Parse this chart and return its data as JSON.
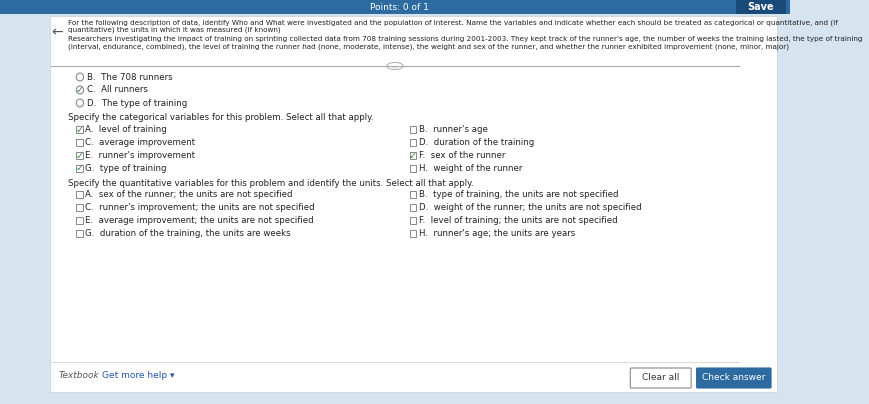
{
  "bg_color": "#d6e4f0",
  "panel_color": "#ffffff",
  "top_bar_color": "#2d6a9f",
  "header_text": "For the following description of data, identify Who and What were investigated and the population of interest. Name the variables and indicate whether each should be treated as categorical or quantitative, and (if quantitative) the units in which it was measured (if known)",
  "scenario_text": "Researchers investigating the impact of training on sprinting collected data from 708 training sessions during 2001-2003. They kept track of the runner's age, the number of weeks the training lasted, the type of training (interval, endurance, combined), the level of training the runner had (none, moderate, intense), the weight and sex of the runner, and whether the runner exhibited improvement (none, minor, major)",
  "pop_options": [
    {
      "label": "B.  The 708 runners",
      "selected": false,
      "type": "radio"
    },
    {
      "label": "C.  All runners",
      "selected": true,
      "type": "radio"
    },
    {
      "label": "D.  The type of training",
      "selected": false,
      "type": "radio"
    }
  ],
  "section2_label": "Specify the categorical variables for this problem. Select all that apply.",
  "cat_options_left": [
    {
      "label": "A.  level of training",
      "selected": true,
      "type": "check"
    },
    {
      "label": "C.  average improvement",
      "selected": false,
      "type": "check"
    },
    {
      "label": "E.  runner's improvement",
      "selected": true,
      "type": "check"
    },
    {
      "label": "G.  type of training",
      "selected": true,
      "type": "check"
    }
  ],
  "cat_options_right": [
    {
      "label": "B.  runner's age",
      "selected": false,
      "type": "check"
    },
    {
      "label": "D.  duration of the training",
      "selected": false,
      "type": "check"
    },
    {
      "label": "F.  sex of the runner",
      "selected": true,
      "type": "check"
    },
    {
      "label": "H.  weight of the runner",
      "selected": false,
      "type": "check"
    }
  ],
  "section3_label": "Specify the quantitative variables for this problem and identify the units. Select all that apply.",
  "quant_options_left": [
    {
      "label": "A.  sex of the runner; the units are not specified",
      "selected": false,
      "type": "check"
    },
    {
      "label": "C.  runner's improvement; the units are not specified",
      "selected": false,
      "type": "check"
    },
    {
      "label": "E.  average improvement; the units are not specified",
      "selected": false,
      "type": "check"
    },
    {
      "label": "G.  duration of the training, the units are weeks",
      "selected": false,
      "type": "check"
    }
  ],
  "quant_options_right": [
    {
      "label": "B.  type of training, the units are not specified",
      "selected": false,
      "type": "check"
    },
    {
      "label": "D.  weight of the runner; the units are not specified",
      "selected": false,
      "type": "check"
    },
    {
      "label": "F.  level of training; the units are not specified",
      "selected": false,
      "type": "check"
    },
    {
      "label": "H.  runner's age; the units are years",
      "selected": false,
      "type": "check"
    }
  ],
  "footer_left": "Textbook",
  "footer_link": "Get more help ▾",
  "footer_btn1": "Clear all",
  "footer_btn2": "Check answer",
  "points_text": "Points: 0 of 1",
  "save_text": "Save"
}
